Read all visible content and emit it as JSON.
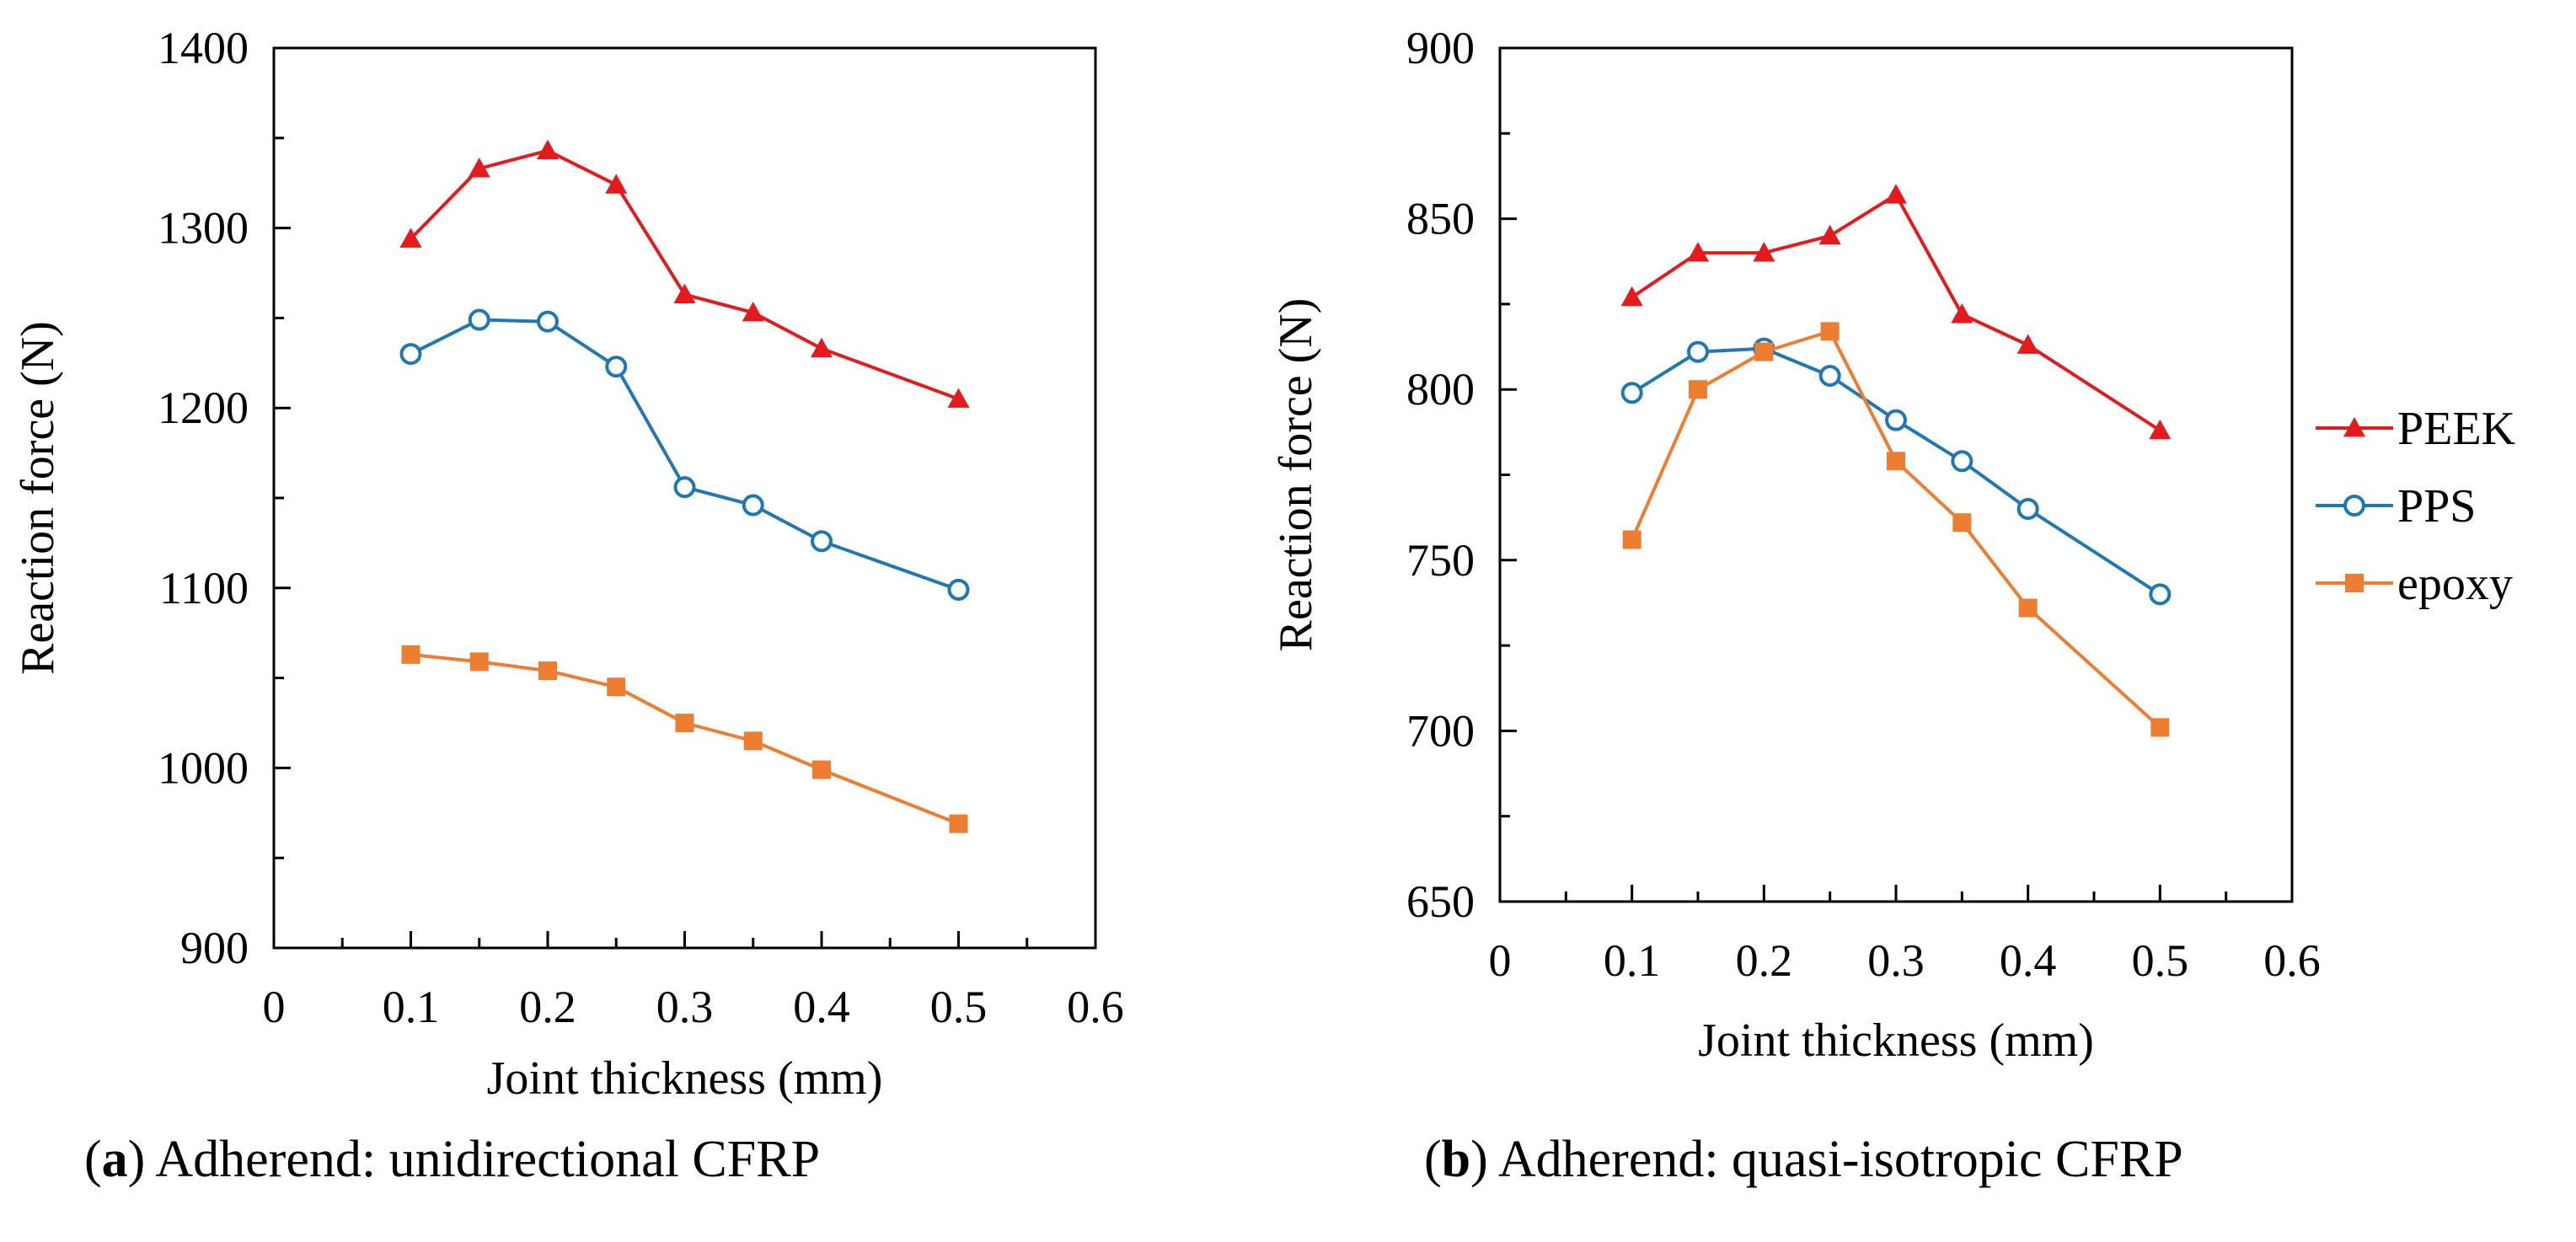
{
  "legend": {
    "items": [
      {
        "name": "PEEK",
        "color": "#e41a1c",
        "marker": "triangle"
      },
      {
        "name": "PPS",
        "color": "#1f78b4",
        "marker": "circle"
      },
      {
        "name": "epoxy",
        "color": "#ed7d31",
        "marker": "square"
      }
    ]
  },
  "captions": [
    {
      "letter": "a",
      "text": "Adherend: unidirectional CFRP"
    },
    {
      "letter": "b",
      "text": "Adherend: quasi-isotropic CFRP"
    }
  ],
  "chart_data": [
    {
      "type": "line",
      "title": "",
      "xlabel": "Joint thickness (mm)",
      "ylabel": "Reaction force (N)",
      "xlim": [
        0,
        0.6
      ],
      "ylim": [
        900,
        1400
      ],
      "xticks": [
        "0",
        "0.1",
        "0.2",
        "0.3",
        "0.4",
        "0.5",
        "0.6"
      ],
      "yticks": [
        "900",
        "1000",
        "1100",
        "1200",
        "1300",
        "1400"
      ],
      "x": [
        0.1,
        0.15,
        0.2,
        0.25,
        0.3,
        0.35,
        0.4,
        0.5
      ],
      "series": [
        {
          "name": "PEEK",
          "values": [
            1294,
            1333,
            1343,
            1324,
            1263,
            1253,
            1233,
            1205
          ]
        },
        {
          "name": "PPS",
          "values": [
            1230,
            1249,
            1248,
            1223,
            1156,
            1146,
            1126,
            1099
          ]
        },
        {
          "name": "epoxy",
          "values": [
            1063,
            1059,
            1054,
            1045,
            1025,
            1015,
            999,
            969
          ]
        }
      ]
    },
    {
      "type": "line",
      "title": "",
      "xlabel": "Joint thickness (mm)",
      "ylabel": "Reaction force (N)",
      "xlim": [
        0,
        0.6
      ],
      "ylim": [
        650,
        900
      ],
      "xticks": [
        "0",
        "0.1",
        "0.2",
        "0.3",
        "0.4",
        "0.5",
        "0.6"
      ],
      "yticks": [
        "650",
        "700",
        "750",
        "800",
        "850",
        "900"
      ],
      "x": [
        0.1,
        0.15,
        0.2,
        0.25,
        0.3,
        0.35,
        0.4,
        0.5
      ],
      "series": [
        {
          "name": "PEEK",
          "values": [
            827,
            840,
            840,
            845,
            857,
            822,
            813,
            788
          ]
        },
        {
          "name": "PPS",
          "values": [
            799,
            811,
            812,
            804,
            791,
            779,
            765,
            740
          ]
        },
        {
          "name": "epoxy",
          "values": [
            756,
            800,
            811,
            817,
            779,
            761,
            736,
            701
          ]
        }
      ]
    }
  ]
}
